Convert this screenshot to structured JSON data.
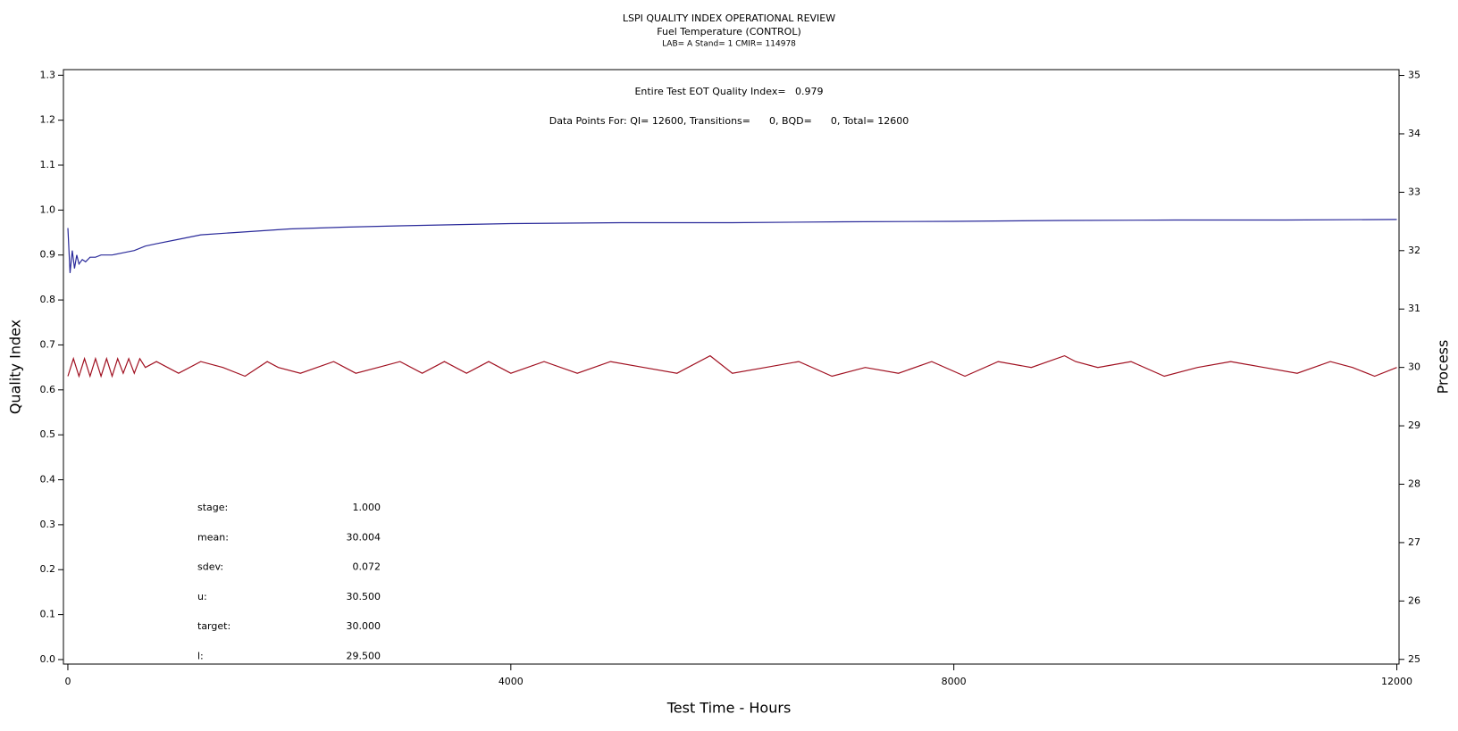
{
  "chart_data": {
    "type": "line",
    "title": "LSPI QUALITY INDEX OPERATIONAL REVIEW",
    "subtitle": "Fuel Temperature (CONTROL)",
    "subtitle2": "LAB= A Stand= 1 CMIR= 114978",
    "annotations": [
      "Entire Test EOT Quality Index=   0.979",
      "Data Points For: QI= 12600, Transitions=      0, BQD=      0, Total= 12600"
    ],
    "stats": [
      {
        "label": "stage:",
        "value": "1.000"
      },
      {
        "label": "mean:",
        "value": "30.004"
      },
      {
        "label": "sdev:",
        "value": "0.072"
      },
      {
        "label": "u:",
        "value": "30.500"
      },
      {
        "label": "target:",
        "value": "30.000"
      },
      {
        "label": "l:",
        "value": "29.500"
      }
    ],
    "xlabel": "Test Time - Hours",
    "ylabel": "Quality Index",
    "y2label": "Process",
    "xlim": [
      -40,
      12020
    ],
    "xticks": [
      0,
      4000,
      8000,
      12000
    ],
    "ylim": [
      -0.01,
      1.3125
    ],
    "yticks": [
      {
        "value": 0,
        "label": "0.0"
      },
      0.1,
      0.2,
      0.3,
      0.4,
      0.5,
      0.6,
      0.7,
      0.8,
      0.9,
      {
        "value": 1,
        "label": "1.0"
      },
      1.1,
      1.2,
      1.3
    ],
    "y2lim": [
      24.92,
      35.1
    ],
    "y2ticks": [
      25,
      26,
      27,
      28,
      29,
      30,
      31,
      32,
      33,
      34,
      35
    ],
    "series": [
      {
        "color": "#2a2a9a",
        "x": [
          0,
          20,
          40,
          60,
          80,
          100,
          130,
          160,
          200,
          250,
          300,
          400,
          500,
          600,
          700,
          800,
          1000,
          1200,
          1500,
          2000,
          2500,
          3000,
          4000,
          5000,
          6000,
          7000,
          8000,
          9000,
          10000,
          11000,
          12000
        ],
        "values": [
          0.96,
          0.86,
          0.91,
          0.87,
          0.9,
          0.88,
          0.89,
          0.885,
          0.895,
          0.895,
          0.9,
          0.9,
          0.905,
          0.91,
          0.92,
          0.925,
          0.935,
          0.945,
          0.95,
          0.958,
          0.962,
          0.965,
          0.97,
          0.972,
          0.972,
          0.974,
          0.975,
          0.977,
          0.978,
          0.978,
          0.979
        ]
      },
      {
        "color": "#a01020",
        "axis": "y2",
        "x": [
          0,
          50,
          100,
          150,
          200,
          250,
          300,
          350,
          400,
          450,
          500,
          550,
          600,
          650,
          700,
          800,
          1000,
          1200,
          1400,
          1600,
          1800,
          1900,
          2100,
          2400,
          2600,
          2800,
          3000,
          3200,
          3400,
          3600,
          3800,
          4000,
          4300,
          4600,
          4900,
          5200,
          5500,
          5800,
          6000,
          6300,
          6600,
          6900,
          7200,
          7500,
          7800,
          8100,
          8400,
          8700,
          9000,
          9100,
          9300,
          9600,
          9900,
          10200,
          10500,
          10800,
          11100,
          11400,
          11600,
          11800,
          12000
        ],
        "values": [
          29.85,
          30.15,
          29.85,
          30.15,
          29.85,
          30.15,
          29.85,
          30.15,
          29.85,
          30.15,
          29.9,
          30.15,
          29.9,
          30.15,
          30,
          30.1,
          29.9,
          30.1,
          30,
          29.85,
          30.1,
          30,
          29.9,
          30.1,
          29.9,
          30,
          30.1,
          29.9,
          30.1,
          29.9,
          30.1,
          29.9,
          30.1,
          29.9,
          30.1,
          30,
          29.9,
          30.2,
          29.9,
          30,
          30.1,
          29.85,
          30,
          29.9,
          30.1,
          29.85,
          30.1,
          30,
          30.2,
          30.1,
          30,
          30.1,
          29.85,
          30,
          30.1,
          30,
          29.9,
          30.1,
          30,
          29.85,
          30
        ]
      }
    ]
  }
}
